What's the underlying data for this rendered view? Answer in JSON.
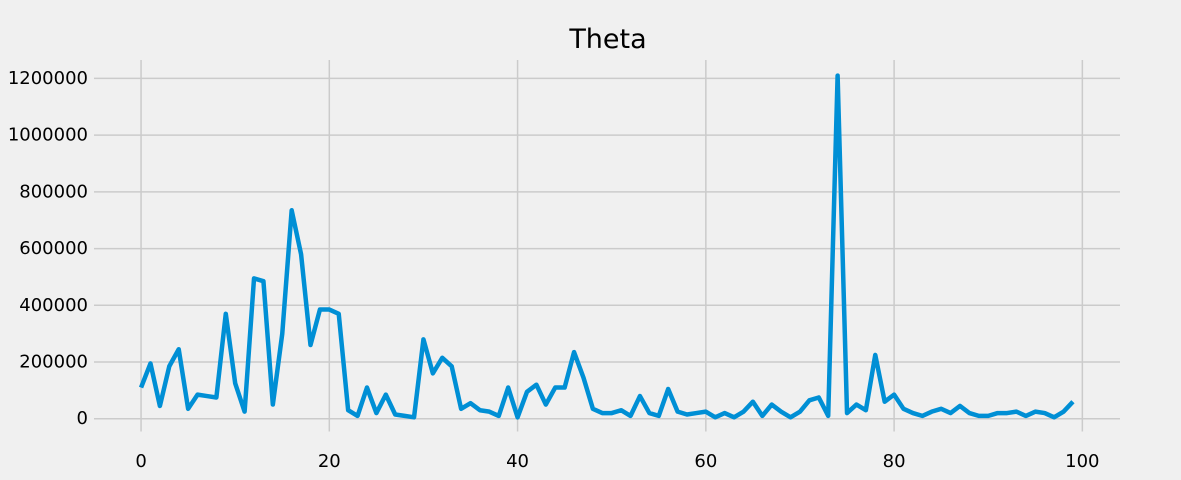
{
  "chart_data": {
    "type": "line",
    "title": "Theta",
    "xlabel": "",
    "ylabel": "",
    "xlim": [
      -5,
      104
    ],
    "ylim": [
      -45000,
      1265000
    ],
    "xticks": [
      0,
      20,
      40,
      60,
      80,
      100
    ],
    "yticks": [
      0,
      200000,
      400000,
      600000,
      800000,
      1000000,
      1200000
    ],
    "grid": true,
    "colors": {
      "background": "#f0f0f0",
      "grid": "#cbcbcb",
      "series": "#008fd5"
    },
    "series": [
      {
        "x": [
          0,
          1,
          2,
          3,
          4,
          5,
          6,
          7,
          8,
          9,
          10,
          11,
          12,
          13,
          14,
          15,
          16,
          17,
          18,
          19,
          20,
          21,
          22,
          23,
          24,
          25,
          26,
          27,
          28,
          29,
          30,
          31,
          32,
          33,
          34,
          35,
          36,
          37,
          38,
          39,
          40,
          41,
          42,
          43,
          44,
          45,
          46,
          47,
          48,
          49,
          50,
          51,
          52,
          53,
          54,
          55,
          56,
          57,
          58,
          59,
          60,
          61,
          62,
          63,
          64,
          65,
          66,
          67,
          68,
          69,
          70,
          71,
          72,
          73,
          74,
          75,
          76,
          77,
          78,
          79,
          80,
          81,
          82,
          83,
          84,
          85,
          86,
          87,
          88,
          89,
          90,
          91,
          92,
          93,
          94,
          95,
          96,
          97,
          98,
          99
        ],
        "values": [
          110000,
          195000,
          45000,
          185000,
          245000,
          35000,
          85000,
          80000,
          75000,
          370000,
          125000,
          25000,
          495000,
          485000,
          50000,
          300000,
          735000,
          580000,
          260000,
          385000,
          385000,
          370000,
          30000,
          10000,
          110000,
          20000,
          85000,
          15000,
          10000,
          5000,
          280000,
          160000,
          215000,
          185000,
          35000,
          55000,
          30000,
          25000,
          10000,
          110000,
          5000,
          95000,
          120000,
          50000,
          110000,
          110000,
          235000,
          145000,
          35000,
          20000,
          20000,
          30000,
          10000,
          80000,
          20000,
          10000,
          105000,
          25000,
          15000,
          20000,
          25000,
          5000,
          20000,
          5000,
          25000,
          60000,
          10000,
          50000,
          25000,
          5000,
          25000,
          65000,
          75000,
          10000,
          1210000,
          20000,
          50000,
          30000,
          225000,
          60000,
          85000,
          35000,
          20000,
          10000,
          25000,
          35000,
          20000,
          45000,
          20000,
          10000,
          10000,
          20000,
          20000,
          25000,
          10000,
          25000,
          20000,
          5000,
          25000,
          60000
        ]
      }
    ]
  }
}
